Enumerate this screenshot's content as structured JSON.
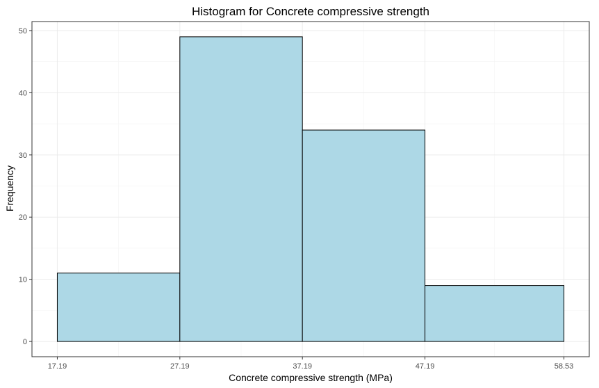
{
  "chart_data": {
    "type": "bar",
    "title": "Histogram for Concrete compressive strength",
    "xlabel": "Concrete compressive strength (MPa)",
    "ylabel": "Frequency",
    "bins": [
      {
        "start": 17.19,
        "end": 27.19,
        "value": 11
      },
      {
        "start": 27.19,
        "end": 37.19,
        "value": 49
      },
      {
        "start": 37.19,
        "end": 47.19,
        "value": 34
      },
      {
        "start": 47.19,
        "end": 58.53,
        "value": 9
      }
    ],
    "x_ticks": [
      17.19,
      27.19,
      37.19,
      47.19,
      58.53
    ],
    "x_tick_labels": [
      "17.19",
      "27.19",
      "37.19",
      "47.19",
      "58.53"
    ],
    "y_ticks": [
      0,
      10,
      20,
      30,
      40,
      50
    ],
    "y_tick_labels": [
      "0",
      "10",
      "20",
      "30",
      "40",
      "50"
    ],
    "xlim": [
      15.123,
      60.597
    ],
    "ylim": [
      -2.45,
      51.45
    ],
    "grid": true,
    "colors": {
      "bar_fill": "#add8e6",
      "bar_stroke": "#000000",
      "panel_border": "#333333",
      "grid_major": "#ebebeb",
      "grid_minor": "#f4f4f4"
    }
  }
}
